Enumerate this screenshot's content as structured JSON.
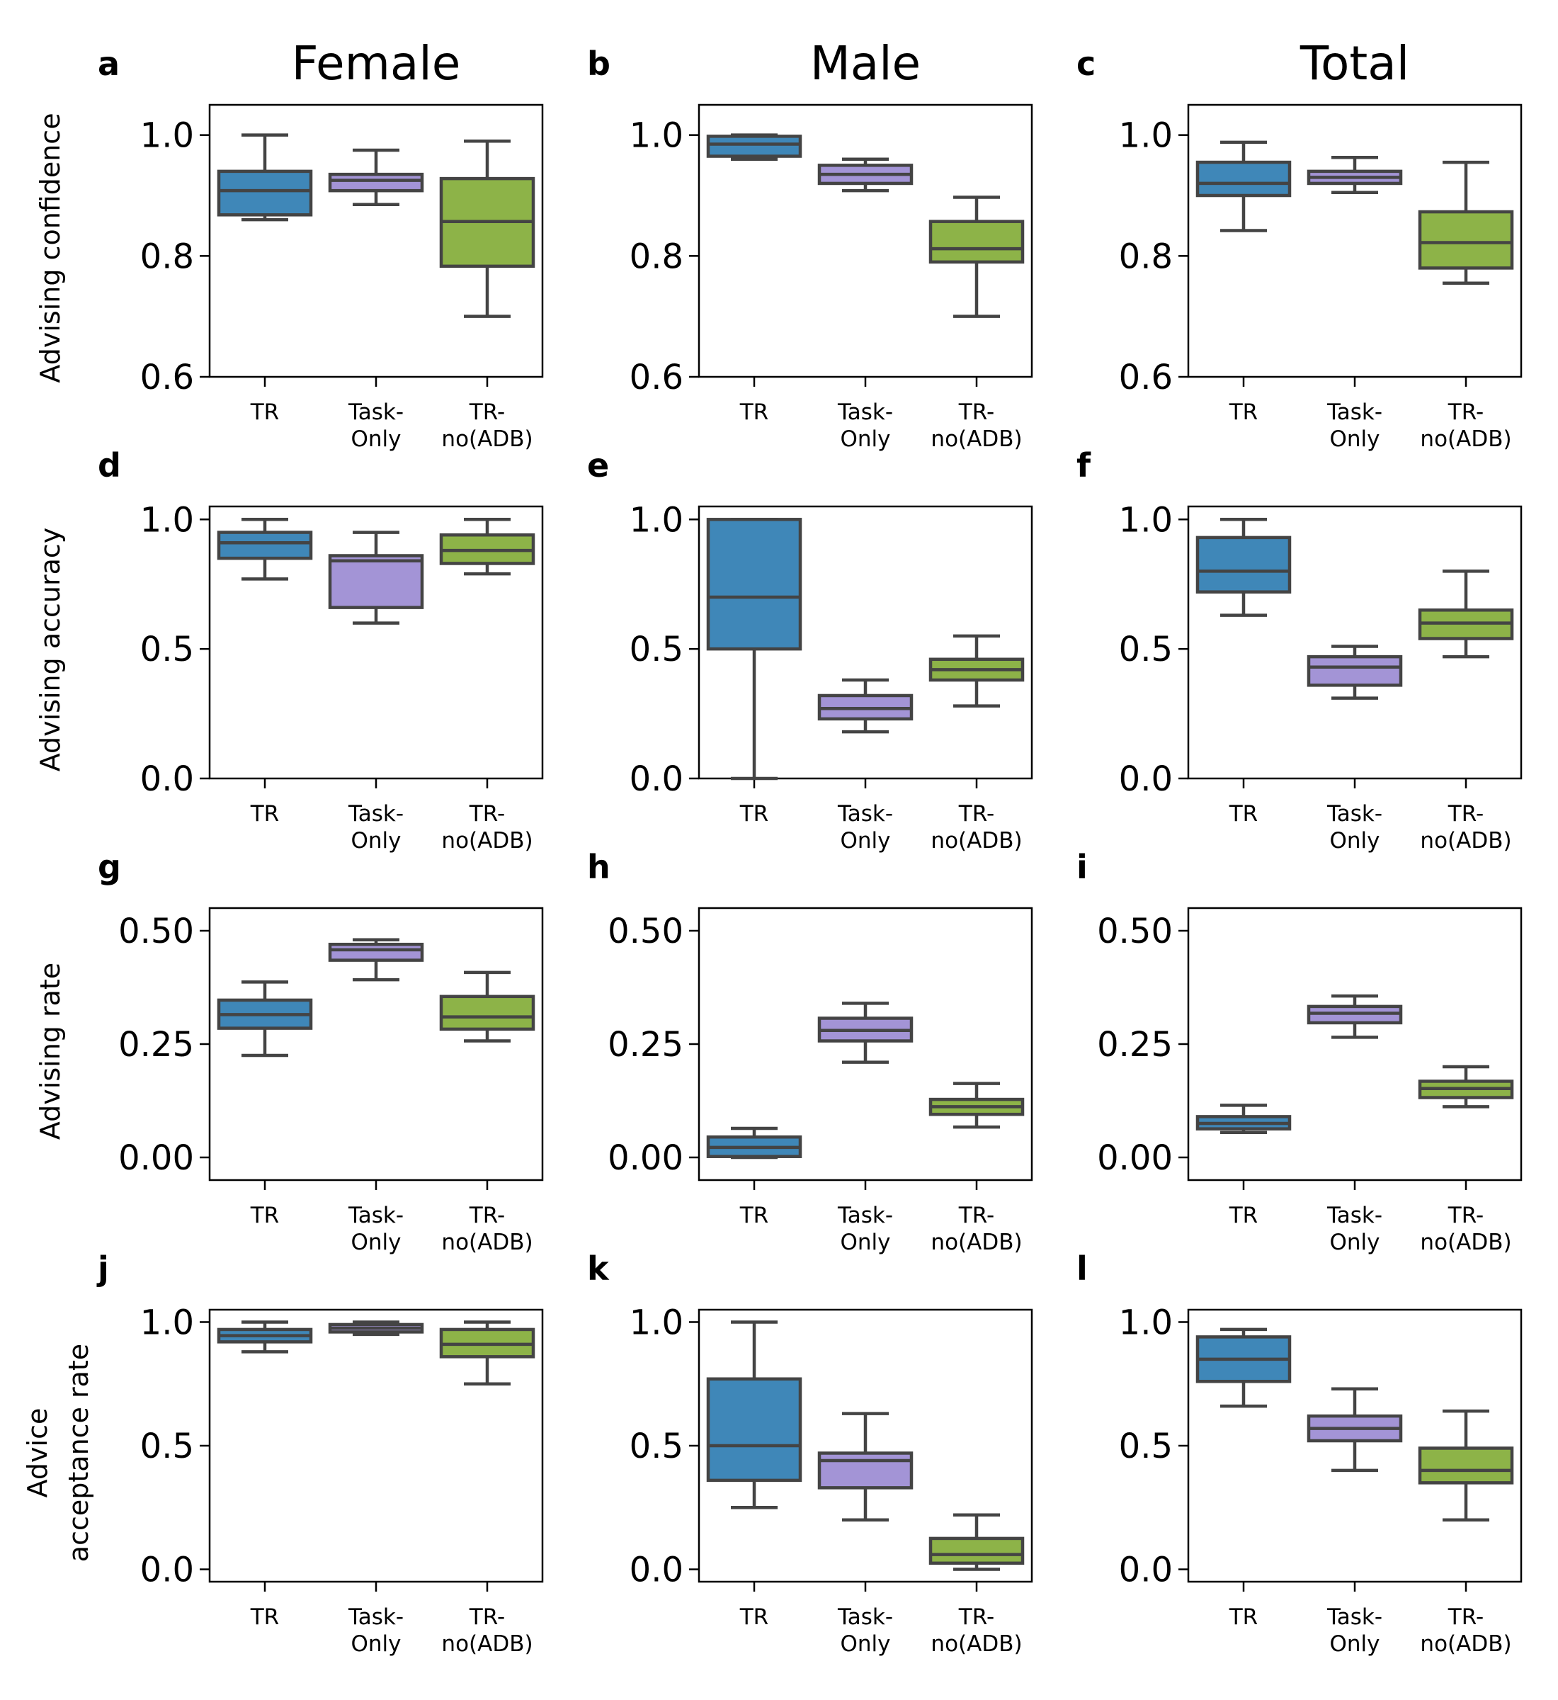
{
  "chart_data": {
    "type": "box",
    "column_titles": [
      "Female",
      "Male",
      "Total"
    ],
    "categories": [
      {
        "line1": "TR",
        "line2": ""
      },
      {
        "line1": "Task-",
        "line2": "Only"
      },
      {
        "line1": "TR-",
        "line2": "no(ADB)"
      }
    ],
    "colors": {
      "TR": "#3f87b8",
      "Task-Only": "#a394d6",
      "TR-no(ADB)": "#8db348",
      "edge": "#444444"
    },
    "rows": [
      {
        "ylabel": [
          "Advising confidence"
        ],
        "ylim": [
          0.6,
          1.05
        ],
        "yticks": [
          0.6,
          0.8,
          1.0
        ],
        "ytick_labels": [
          "0.6",
          "0.8",
          "1.0"
        ],
        "panels": [
          {
            "letter": "a",
            "boxes": [
              {
                "min": 0.86,
                "q1": 0.868,
                "median": 0.908,
                "q3": 0.94,
                "max": 1.0
              },
              {
                "min": 0.885,
                "q1": 0.908,
                "median": 0.925,
                "q3": 0.935,
                "max": 0.975
              },
              {
                "min": 0.7,
                "q1": 0.783,
                "median": 0.857,
                "q3": 0.928,
                "max": 0.99
              }
            ]
          },
          {
            "letter": "b",
            "boxes": [
              {
                "min": 0.96,
                "q1": 0.965,
                "median": 0.985,
                "q3": 0.998,
                "max": 1.0
              },
              {
                "min": 0.908,
                "q1": 0.92,
                "median": 0.935,
                "q3": 0.95,
                "max": 0.96
              },
              {
                "min": 0.7,
                "q1": 0.79,
                "median": 0.812,
                "q3": 0.857,
                "max": 0.897
              }
            ]
          },
          {
            "letter": "c",
            "boxes": [
              {
                "min": 0.842,
                "q1": 0.9,
                "median": 0.92,
                "q3": 0.955,
                "max": 0.988
              },
              {
                "min": 0.905,
                "q1": 0.92,
                "median": 0.93,
                "q3": 0.94,
                "max": 0.963
              },
              {
                "min": 0.755,
                "q1": 0.78,
                "median": 0.822,
                "q3": 0.873,
                "max": 0.955
              }
            ]
          }
        ]
      },
      {
        "ylabel": [
          "Advising accuracy"
        ],
        "ylim": [
          0.0,
          1.05
        ],
        "yticks": [
          0.0,
          0.5,
          1.0
        ],
        "ytick_labels": [
          "0.0",
          "0.5",
          "1.0"
        ],
        "panels": [
          {
            "letter": "d",
            "boxes": [
              {
                "min": 0.77,
                "q1": 0.85,
                "median": 0.91,
                "q3": 0.95,
                "max": 1.0
              },
              {
                "min": 0.6,
                "q1": 0.66,
                "median": 0.84,
                "q3": 0.86,
                "max": 0.95
              },
              {
                "min": 0.79,
                "q1": 0.83,
                "median": 0.88,
                "q3": 0.94,
                "max": 1.0
              }
            ]
          },
          {
            "letter": "e",
            "boxes": [
              {
                "min": 0.0,
                "q1": 0.5,
                "median": 0.7,
                "q3": 1.0,
                "max": 1.0
              },
              {
                "min": 0.18,
                "q1": 0.23,
                "median": 0.27,
                "q3": 0.32,
                "max": 0.38
              },
              {
                "min": 0.28,
                "q1": 0.38,
                "median": 0.42,
                "q3": 0.46,
                "max": 0.55
              }
            ]
          },
          {
            "letter": "f",
            "boxes": [
              {
                "min": 0.63,
                "q1": 0.72,
                "median": 0.8,
                "q3": 0.93,
                "max": 1.0
              },
              {
                "min": 0.31,
                "q1": 0.36,
                "median": 0.43,
                "q3": 0.47,
                "max": 0.51
              },
              {
                "min": 0.47,
                "q1": 0.54,
                "median": 0.6,
                "q3": 0.65,
                "max": 0.8
              }
            ]
          }
        ]
      },
      {
        "ylabel": [
          "Advising rate"
        ],
        "ylim": [
          -0.05,
          0.55
        ],
        "yticks": [
          0.0,
          0.25,
          0.5
        ],
        "ytick_labels": [
          "0.00",
          "0.25",
          "0.50"
        ],
        "panels": [
          {
            "letter": "g",
            "boxes": [
              {
                "min": 0.225,
                "q1": 0.285,
                "median": 0.315,
                "q3": 0.347,
                "max": 0.387
              },
              {
                "min": 0.392,
                "q1": 0.435,
                "median": 0.458,
                "q3": 0.47,
                "max": 0.48
              },
              {
                "min": 0.257,
                "q1": 0.283,
                "median": 0.31,
                "q3": 0.355,
                "max": 0.408
              }
            ]
          },
          {
            "letter": "h",
            "boxes": [
              {
                "min": 0.0,
                "q1": 0.002,
                "median": 0.022,
                "q3": 0.045,
                "max": 0.064
              },
              {
                "min": 0.21,
                "q1": 0.257,
                "median": 0.28,
                "q3": 0.307,
                "max": 0.34
              },
              {
                "min": 0.067,
                "q1": 0.095,
                "median": 0.112,
                "q3": 0.128,
                "max": 0.163
              }
            ]
          },
          {
            "letter": "i",
            "boxes": [
              {
                "min": 0.055,
                "q1": 0.063,
                "median": 0.075,
                "q3": 0.09,
                "max": 0.115
              },
              {
                "min": 0.265,
                "q1": 0.297,
                "median": 0.318,
                "q3": 0.333,
                "max": 0.356
              },
              {
                "min": 0.112,
                "q1": 0.132,
                "median": 0.152,
                "q3": 0.168,
                "max": 0.2
              }
            ]
          }
        ]
      },
      {
        "ylabel": [
          "Advice",
          "acceptance rate"
        ],
        "ylim": [
          -0.05,
          1.05
        ],
        "yticks": [
          0.0,
          0.5,
          1.0
        ],
        "ytick_labels": [
          "0.0",
          "0.5",
          "1.0"
        ],
        "panels": [
          {
            "letter": "j",
            "boxes": [
              {
                "min": 0.88,
                "q1": 0.92,
                "median": 0.945,
                "q3": 0.97,
                "max": 1.0
              },
              {
                "min": 0.95,
                "q1": 0.96,
                "median": 0.975,
                "q3": 0.99,
                "max": 1.0
              },
              {
                "min": 0.75,
                "q1": 0.86,
                "median": 0.91,
                "q3": 0.97,
                "max": 1.0
              }
            ]
          },
          {
            "letter": "k",
            "boxes": [
              {
                "min": 0.25,
                "q1": 0.36,
                "median": 0.5,
                "q3": 0.77,
                "max": 1.0
              },
              {
                "min": 0.2,
                "q1": 0.33,
                "median": 0.44,
                "q3": 0.47,
                "max": 0.63
              },
              {
                "min": 0.0,
                "q1": 0.025,
                "median": 0.06,
                "q3": 0.125,
                "max": 0.22
              }
            ]
          },
          {
            "letter": "l",
            "boxes": [
              {
                "min": 0.66,
                "q1": 0.76,
                "median": 0.85,
                "q3": 0.94,
                "max": 0.97
              },
              {
                "min": 0.4,
                "q1": 0.52,
                "median": 0.57,
                "q3": 0.62,
                "max": 0.73
              },
              {
                "min": 0.2,
                "q1": 0.35,
                "median": 0.4,
                "q3": 0.49,
                "max": 0.64
              }
            ]
          }
        ]
      }
    ]
  }
}
